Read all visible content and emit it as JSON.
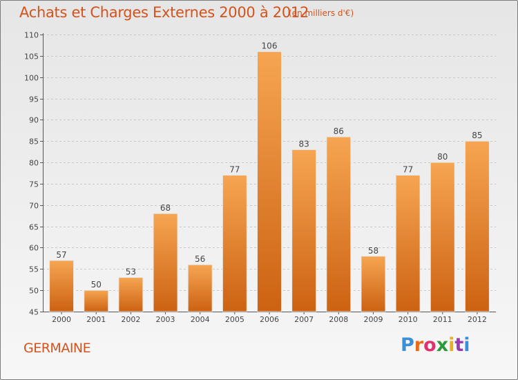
{
  "title": "Achats et Charges Externes 2000 à 2012",
  "subtitle": "(en milliers d'€)",
  "commune": "GERMAINE",
  "brand": {
    "letters": [
      "P",
      "r",
      "o",
      "x",
      "i",
      "t",
      "i"
    ],
    "colors": [
      "#3a8fd6",
      "#e86a1a",
      "#e03070",
      "#2a9a3a",
      "#e8b020",
      "#9a3ab0",
      "#3a8fd6"
    ]
  },
  "colors": {
    "bar_top": "#f6a552",
    "bar_bottom": "#cc6212",
    "accent": "#d4521c"
  },
  "chart_data": {
    "type": "bar",
    "categories": [
      "2000",
      "2001",
      "2002",
      "2003",
      "2004",
      "2005",
      "2006",
      "2007",
      "2008",
      "2009",
      "2010",
      "2011",
      "2012"
    ],
    "values": [
      57,
      50,
      53,
      68,
      56,
      77,
      106,
      83,
      86,
      58,
      77,
      80,
      85
    ],
    "title": "Achats et Charges Externes 2000 à 2012",
    "subtitle": "(en milliers d'€)",
    "xlabel": "",
    "ylabel": "",
    "ylim": [
      45,
      110
    ],
    "yticks": [
      45,
      50,
      55,
      60,
      65,
      70,
      75,
      80,
      85,
      90,
      95,
      100,
      105,
      110
    ],
    "grid": true
  }
}
